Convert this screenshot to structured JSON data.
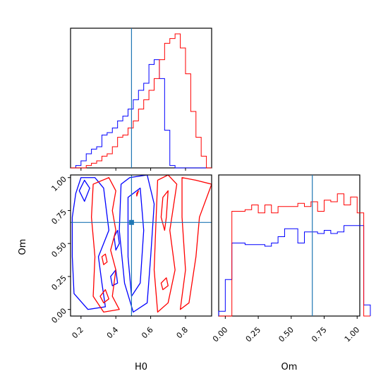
{
  "chart_data": {
    "type": "corner",
    "parameters": [
      "H0",
      "Om"
    ],
    "truth": {
      "H0": 0.49,
      "Om": 0.66
    },
    "truth_color": "#1f77b4",
    "series_colors": {
      "blue": "#0000ff",
      "red": "#ff0000"
    },
    "axes": {
      "H0": {
        "label": "H0",
        "range": [
          0.14,
          0.95
        ],
        "ticks": [
          0.2,
          0.4,
          0.6,
          0.8
        ],
        "tick_labels": [
          "0.2",
          "0.4",
          "0.6",
          "0.8"
        ]
      },
      "Om": {
        "label": "Om",
        "range": [
          -0.05,
          1.02
        ],
        "ticks": [
          0.0,
          0.25,
          0.5,
          0.75,
          1.0
        ],
        "tick_labels": [
          "0.00",
          "0.25",
          "0.50",
          "0.75",
          "1.00"
        ]
      }
    },
    "hist_H0": {
      "bins_start": 0.14,
      "bin_width": 0.03,
      "max": 57,
      "blue": [
        0,
        1,
        3,
        6,
        8,
        9,
        14,
        15,
        17,
        20,
        22,
        25,
        29,
        33,
        36,
        44,
        46,
        38,
        16,
        1,
        0,
        0,
        0,
        0,
        0,
        0,
        0
      ],
      "red": [
        0,
        0,
        0,
        1,
        2,
        3,
        5,
        6,
        9,
        13,
        14,
        17,
        20,
        25,
        29,
        33,
        38,
        46,
        53,
        55,
        57,
        51,
        40,
        24,
        13,
        5,
        0
      ]
    },
    "hist_Om": {
      "bins_start": -0.05,
      "bin_width": 0.05,
      "max": 80,
      "blue": [
        3,
        23,
        46,
        46,
        45,
        45,
        45,
        44,
        46,
        50,
        55,
        55,
        46,
        53,
        53,
        52,
        54,
        52,
        53,
        57,
        57,
        57,
        7
      ],
      "red": [
        0,
        0,
        66,
        66,
        67,
        70,
        65,
        70,
        65,
        69,
        69,
        69,
        71,
        69,
        72,
        66,
        73,
        72,
        77,
        70,
        75,
        65,
        0
      ]
    },
    "contours_2d": {
      "blue": [
        [
          [
            0.15,
            0.7
          ],
          [
            0.17,
            0.88
          ],
          [
            0.2,
            1.0
          ],
          [
            0.28,
            1.0
          ],
          [
            0.33,
            0.92
          ],
          [
            0.36,
            0.6
          ],
          [
            0.3,
            0.4
          ],
          [
            0.32,
            0.2
          ],
          [
            0.34,
            0.02
          ],
          [
            0.24,
            0.0
          ],
          [
            0.16,
            0.12
          ],
          [
            0.15,
            0.4
          ]
        ],
        [
          [
            0.43,
            0.95
          ],
          [
            0.48,
            1.0
          ],
          [
            0.58,
            1.02
          ],
          [
            0.62,
            0.8
          ],
          [
            0.6,
            0.4
          ],
          [
            0.58,
            0.05
          ],
          [
            0.5,
            -0.02
          ],
          [
            0.45,
            0.2
          ],
          [
            0.42,
            0.6
          ]
        ],
        [
          [
            0.47,
            0.85
          ],
          [
            0.54,
            0.92
          ],
          [
            0.56,
            0.6
          ],
          [
            0.54,
            0.2
          ],
          [
            0.49,
            0.1
          ],
          [
            0.47,
            0.4
          ]
        ],
        [
          [
            0.19,
            0.9
          ],
          [
            0.22,
            0.98
          ],
          [
            0.25,
            0.92
          ],
          [
            0.22,
            0.82
          ]
        ],
        [
          [
            0.39,
            0.55
          ],
          [
            0.41,
            0.6
          ],
          [
            0.42,
            0.5
          ],
          [
            0.4,
            0.45
          ]
        ],
        [
          [
            0.37,
            0.25
          ],
          [
            0.4,
            0.3
          ],
          [
            0.41,
            0.2
          ],
          [
            0.38,
            0.18
          ]
        ]
      ],
      "red": [
        [
          [
            0.27,
            0.95
          ],
          [
            0.36,
            1.0
          ],
          [
            0.4,
            0.9
          ],
          [
            0.38,
            0.75
          ],
          [
            0.4,
            0.6
          ],
          [
            0.37,
            0.45
          ],
          [
            0.4,
            0.3
          ],
          [
            0.38,
            0.1
          ],
          [
            0.42,
            0.0
          ],
          [
            0.33,
            -0.02
          ],
          [
            0.27,
            0.1
          ],
          [
            0.28,
            0.4
          ],
          [
            0.26,
            0.7
          ]
        ],
        [
          [
            0.64,
            0.98
          ],
          [
            0.7,
            1.02
          ],
          [
            0.75,
            0.95
          ],
          [
            0.71,
            0.6
          ],
          [
            0.74,
            0.3
          ],
          [
            0.7,
            0.05
          ],
          [
            0.64,
            -0.02
          ],
          [
            0.62,
            0.3
          ],
          [
            0.63,
            0.65
          ]
        ],
        [
          [
            0.67,
            0.85
          ],
          [
            0.7,
            0.9
          ],
          [
            0.69,
            0.7
          ],
          [
            0.68,
            0.6
          ],
          [
            0.66,
            0.7
          ]
        ],
        [
          [
            0.78,
            1.0
          ],
          [
            0.86,
            0.98
          ],
          [
            0.95,
            0.95
          ],
          [
            0.88,
            0.7
          ],
          [
            0.86,
            0.4
          ],
          [
            0.82,
            0.05
          ],
          [
            0.77,
            0.0
          ],
          [
            0.8,
            0.3
          ],
          [
            0.78,
            0.7
          ]
        ],
        [
          [
            0.32,
            0.4
          ],
          [
            0.34,
            0.42
          ],
          [
            0.35,
            0.36
          ],
          [
            0.33,
            0.34
          ]
        ],
        [
          [
            0.31,
            0.1
          ],
          [
            0.34,
            0.15
          ],
          [
            0.36,
            0.08
          ],
          [
            0.33,
            0.05
          ]
        ],
        [
          [
            0.52,
            0.88
          ],
          [
            0.53,
            0.9
          ],
          [
            0.52,
            0.86
          ]
        ],
        [
          [
            0.66,
            0.2
          ],
          [
            0.69,
            0.24
          ],
          [
            0.7,
            0.18
          ],
          [
            0.67,
            0.15
          ]
        ]
      ]
    }
  }
}
